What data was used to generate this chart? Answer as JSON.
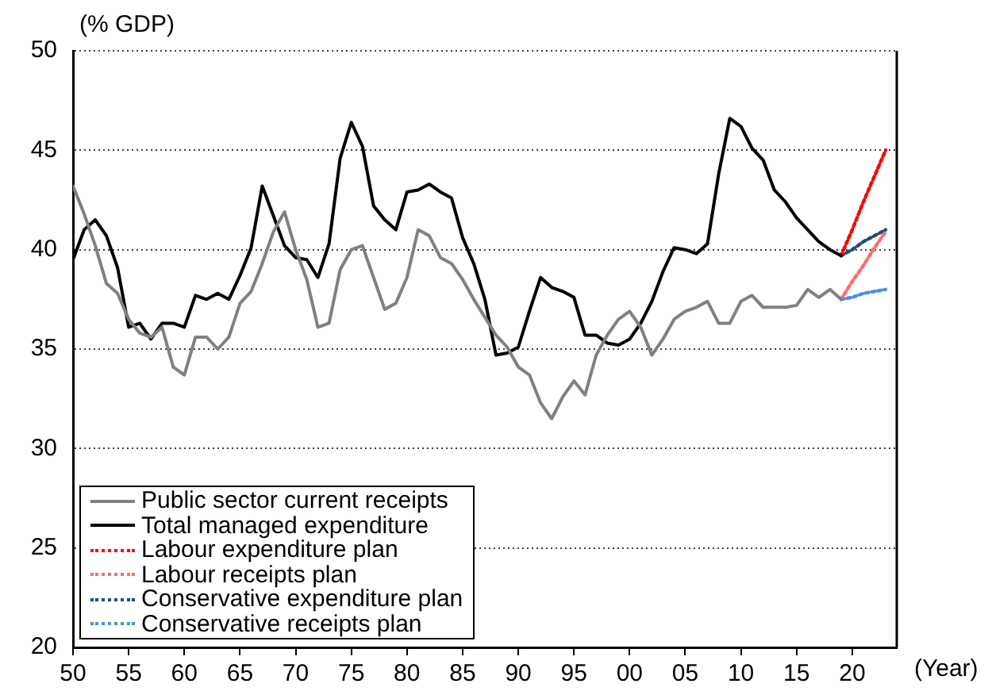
{
  "chart_data": {
    "type": "line",
    "xlabel": "(Year)",
    "ylabel": "(% GDP)",
    "xlim": [
      1950,
      2024
    ],
    "xticks": [
      {
        "value": 1950,
        "label": "50"
      },
      {
        "value": 1955,
        "label": "55"
      },
      {
        "value": 1960,
        "label": "60"
      },
      {
        "value": 1965,
        "label": "65"
      },
      {
        "value": 1970,
        "label": "70"
      },
      {
        "value": 1975,
        "label": "75"
      },
      {
        "value": 1980,
        "label": "80"
      },
      {
        "value": 1985,
        "label": "85"
      },
      {
        "value": 1990,
        "label": "90"
      },
      {
        "value": 1995,
        "label": "95"
      },
      {
        "value": 2000,
        "label": "00"
      },
      {
        "value": 2005,
        "label": "05"
      },
      {
        "value": 2010,
        "label": "10"
      },
      {
        "value": 2015,
        "label": "15"
      },
      {
        "value": 2020,
        "label": "20"
      }
    ],
    "ylim": [
      20,
      50
    ],
    "yticks": [
      20,
      25,
      30,
      35,
      40,
      45,
      50
    ],
    "grid": "y",
    "legend": "bottom left",
    "marker": "none",
    "x": [
      1950,
      1951,
      1952,
      1953,
      1954,
      1955,
      1956,
      1957,
      1958,
      1959,
      1960,
      1961,
      1962,
      1963,
      1964,
      1965,
      1966,
      1967,
      1968,
      1969,
      1970,
      1971,
      1972,
      1973,
      1974,
      1975,
      1976,
      1977,
      1978,
      1979,
      1980,
      1981,
      1982,
      1983,
      1984,
      1985,
      1986,
      1987,
      1988,
      1989,
      1990,
      1991,
      1992,
      1993,
      1994,
      1995,
      1996,
      1997,
      1998,
      1999,
      2000,
      2001,
      2002,
      2003,
      2004,
      2005,
      2006,
      2007,
      2008,
      2009,
      2010,
      2011,
      2012,
      2013,
      2014,
      2015,
      2016,
      2017,
      2018,
      2019,
      2020,
      2021,
      2022,
      2023
    ],
    "series": [
      {
        "name": "Public sector current receipts",
        "color": "#808080",
        "line_style": "solid",
        "values": [
          43.2,
          41.8,
          40.2,
          38.3,
          37.8,
          36.5,
          35.8,
          35.6,
          36.1,
          34.1,
          33.7,
          35.6,
          35.6,
          35.0,
          35.6,
          37.3,
          37.9,
          39.3,
          40.9,
          41.9,
          40.0,
          38.5,
          36.1,
          36.3,
          39.0,
          40.0,
          40.2,
          38.6,
          37.0,
          37.3,
          38.6,
          41.0,
          40.7,
          39.6,
          39.3,
          38.5,
          37.5,
          36.6,
          35.7,
          35.1,
          34.1,
          33.7,
          32.3,
          31.5,
          32.6,
          33.4,
          32.7,
          34.7,
          35.7,
          36.5,
          36.9,
          36.1,
          34.7,
          35.5,
          36.5,
          36.9,
          37.1,
          37.4,
          36.3,
          36.3,
          37.4,
          37.7,
          37.1,
          37.1,
          37.1,
          37.2,
          38.0,
          37.6,
          38.0,
          37.5,
          null,
          null,
          null,
          null
        ]
      },
      {
        "name": "Total managed expenditure",
        "color": "#000000",
        "line_style": "solid",
        "values": [
          39.5,
          41.0,
          41.5,
          40.7,
          39.1,
          36.1,
          36.3,
          35.5,
          36.3,
          36.3,
          36.1,
          37.7,
          37.5,
          37.8,
          37.5,
          38.7,
          40.1,
          43.2,
          41.7,
          40.2,
          39.6,
          39.5,
          38.6,
          40.3,
          44.6,
          46.4,
          45.2,
          42.2,
          41.5,
          41.0,
          42.9,
          43.0,
          43.3,
          42.9,
          42.6,
          40.6,
          39.3,
          37.5,
          34.7,
          34.8,
          35.1,
          36.9,
          38.6,
          38.1,
          37.9,
          37.6,
          35.7,
          35.7,
          35.3,
          35.2,
          35.5,
          36.3,
          37.4,
          38.9,
          40.1,
          40.0,
          39.8,
          40.3,
          43.8,
          46.6,
          46.2,
          45.1,
          44.5,
          43.0,
          42.4,
          41.6,
          41.0,
          40.4,
          40.0,
          39.7,
          null,
          null,
          null,
          null
        ]
      },
      {
        "name": "Labour expenditure plan",
        "color": "#ff0000",
        "line_style": "dotted",
        "values": [
          null,
          null,
          null,
          null,
          null,
          null,
          null,
          null,
          null,
          null,
          null,
          null,
          null,
          null,
          null,
          null,
          null,
          null,
          null,
          null,
          null,
          null,
          null,
          null,
          null,
          null,
          null,
          null,
          null,
          null,
          null,
          null,
          null,
          null,
          null,
          null,
          null,
          null,
          null,
          null,
          null,
          null,
          null,
          null,
          null,
          null,
          null,
          null,
          null,
          null,
          null,
          null,
          null,
          null,
          null,
          null,
          null,
          null,
          null,
          null,
          null,
          null,
          null,
          null,
          null,
          null,
          null,
          null,
          null,
          39.7,
          41.0,
          42.4,
          43.7,
          45.0
        ]
      },
      {
        "name": "Labour receipts plan",
        "color": "#ff6b6b",
        "line_style": "dotted",
        "values": [
          null,
          null,
          null,
          null,
          null,
          null,
          null,
          null,
          null,
          null,
          null,
          null,
          null,
          null,
          null,
          null,
          null,
          null,
          null,
          null,
          null,
          null,
          null,
          null,
          null,
          null,
          null,
          null,
          null,
          null,
          null,
          null,
          null,
          null,
          null,
          null,
          null,
          null,
          null,
          null,
          null,
          null,
          null,
          null,
          null,
          null,
          null,
          null,
          null,
          null,
          null,
          null,
          null,
          null,
          null,
          null,
          null,
          null,
          null,
          null,
          null,
          null,
          null,
          null,
          null,
          null,
          null,
          null,
          null,
          37.5,
          38.4,
          39.2,
          40.1,
          40.9
        ]
      },
      {
        "name": "Conservative expenditure plan",
        "color": "#1f4e79",
        "line_style": "dotted",
        "values": [
          null,
          null,
          null,
          null,
          null,
          null,
          null,
          null,
          null,
          null,
          null,
          null,
          null,
          null,
          null,
          null,
          null,
          null,
          null,
          null,
          null,
          null,
          null,
          null,
          null,
          null,
          null,
          null,
          null,
          null,
          null,
          null,
          null,
          null,
          null,
          null,
          null,
          null,
          null,
          null,
          null,
          null,
          null,
          null,
          null,
          null,
          null,
          null,
          null,
          null,
          null,
          null,
          null,
          null,
          null,
          null,
          null,
          null,
          null,
          null,
          null,
          null,
          null,
          null,
          null,
          null,
          null,
          null,
          null,
          39.7,
          40.0,
          40.4,
          40.7,
          41.0
        ]
      },
      {
        "name": "Conservative receipts plan",
        "color": "#4a90d9",
        "line_style": "dotted",
        "values": [
          null,
          null,
          null,
          null,
          null,
          null,
          null,
          null,
          null,
          null,
          null,
          null,
          null,
          null,
          null,
          null,
          null,
          null,
          null,
          null,
          null,
          null,
          null,
          null,
          null,
          null,
          null,
          null,
          null,
          null,
          null,
          null,
          null,
          null,
          null,
          null,
          null,
          null,
          null,
          null,
          null,
          null,
          null,
          null,
          null,
          null,
          null,
          null,
          null,
          null,
          null,
          null,
          null,
          null,
          null,
          null,
          null,
          null,
          null,
          null,
          null,
          null,
          null,
          null,
          null,
          null,
          null,
          null,
          null,
          37.5,
          37.6,
          37.8,
          37.9,
          38.0
        ]
      }
    ]
  }
}
